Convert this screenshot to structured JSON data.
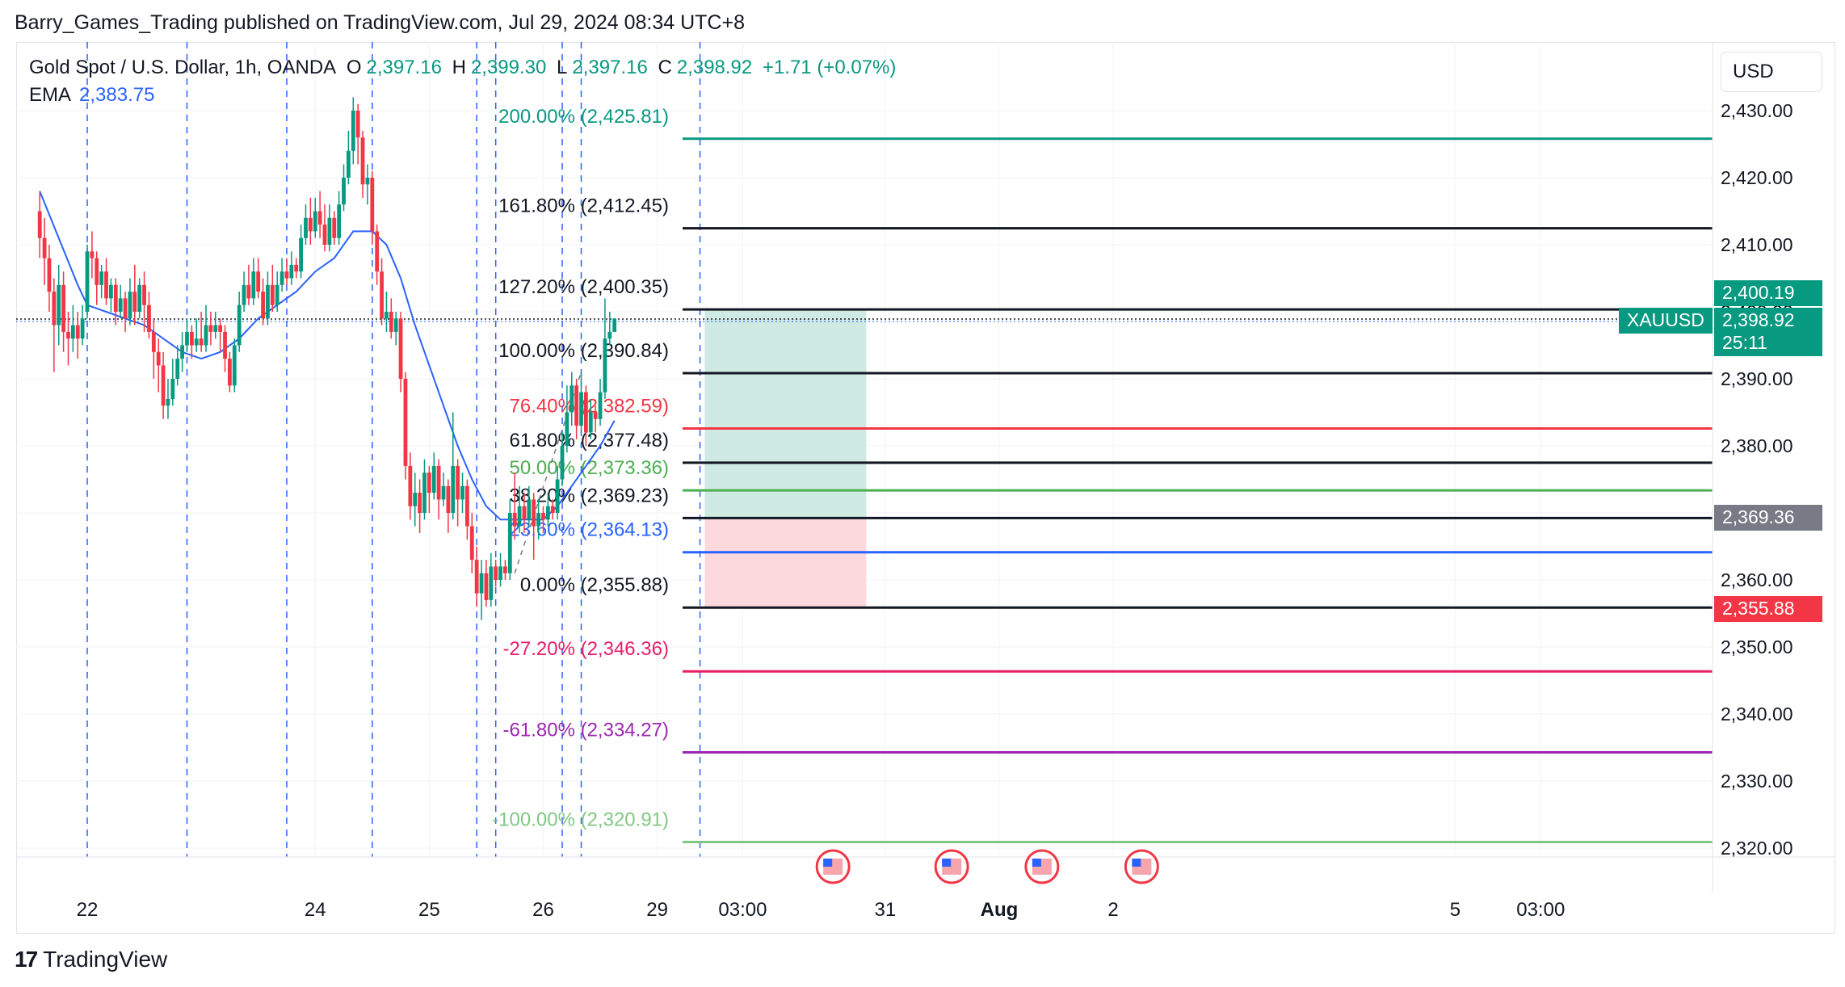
{
  "header": {
    "published_line": "Barry_Games_Trading published on TradingView.com, Jul 29, 2024 08:34 UTC+8"
  },
  "legend": {
    "symbol": "Gold Spot / U.S. Dollar, 1h, OANDA",
    "o_label": "O",
    "o_value": "2,397.16",
    "h_label": "H",
    "h_value": "2,399.30",
    "l_label": "L",
    "l_value": "2,397.16",
    "c_label": "C",
    "c_value": "2,398.92",
    "change": "+1.71 (+0.07%)",
    "ema_label": "EMA",
    "ema_value": "2,383.75"
  },
  "currency": "USD",
  "footer": {
    "brand": "TradingView",
    "brand_mark": "17"
  },
  "price_tags": {
    "symbol": "XAUUSD",
    "target": "2,400.19",
    "last": "2,398.92",
    "countdown": "25:11",
    "entry": "2,369.36",
    "stop": "2,355.88"
  },
  "colors": {
    "up": "#089981",
    "down": "#f23645",
    "ema": "#2962ff",
    "profit_zone": "#cfe9e3",
    "loss_zone": "#fbd9dc",
    "vline": "#2962ff"
  },
  "chart_data": {
    "type": "candlestick",
    "symbol": "Gold Spot / U.S. Dollar",
    "interval": "1h",
    "ylim": [
      2313,
      2436
    ],
    "y_ticks": [
      "2,430.00",
      "2,420.00",
      "2,410.00",
      "2,400.00",
      "2,390.00",
      "2,380.00",
      "2,370.00",
      "2,360.00",
      "2,350.00",
      "2,340.00",
      "2,330.00",
      "2,320.00"
    ],
    "y_tick_values": [
      2430,
      2420,
      2410,
      2400,
      2390,
      2380,
      2370,
      2360,
      2350,
      2340,
      2330,
      2320
    ],
    "x_tick_labels": [
      "22",
      "24",
      "25",
      "26",
      "29",
      "03:00",
      "31",
      "Aug",
      "2",
      "5",
      "03:00"
    ],
    "x_tick_hours": [
      0,
      48,
      72,
      96,
      120,
      138,
      168,
      192,
      216,
      288,
      306
    ],
    "fib_levels": [
      {
        "label": "200.00% (2,425.81)",
        "value": 2425.81,
        "color": "#089981"
      },
      {
        "label": "161.80% (2,412.45)",
        "value": 2412.45,
        "color": "#131722"
      },
      {
        "label": "127.20% (2,400.35)",
        "value": 2400.35,
        "color": "#131722"
      },
      {
        "label": "100.00% (2,390.84)",
        "value": 2390.84,
        "color": "#131722"
      },
      {
        "label": "76.40% (2,382.59)",
        "value": 2382.59,
        "color": "#f23645"
      },
      {
        "label": "61.80% (2,377.48)",
        "value": 2377.48,
        "color": "#131722"
      },
      {
        "label": "50.00% (2,373.36)",
        "value": 2373.36,
        "color": "#4caf50"
      },
      {
        "label": "38.20% (2,369.23)",
        "value": 2369.23,
        "color": "#131722"
      },
      {
        "label": "23.60% (2,364.13)",
        "value": 2364.13,
        "color": "#2962ff"
      },
      {
        "label": "0.00% (2,355.88)",
        "value": 2355.88,
        "color": "#131722"
      },
      {
        "label": "-27.20% (2,346.36)",
        "value": 2346.36,
        "color": "#e91e63"
      },
      {
        "label": "-61.80% (2,334.27)",
        "value": 2334.27,
        "color": "#9c27b0"
      },
      {
        "label": "-100.00% (2,320.91)",
        "value": 2320.91,
        "color": "#81c784"
      }
    ],
    "position": {
      "entry": 2369.36,
      "target": 2400.19,
      "stop": 2355.88,
      "from_hour": 130,
      "to_hour": 164
    },
    "event_hours": [
      157,
      182,
      201,
      222
    ],
    "vline_hours": [
      0,
      21,
      42,
      60,
      82,
      86,
      100,
      104,
      129
    ],
    "candles": [
      {
        "h": -10,
        "o": 2415,
        "c": 2411,
        "hi": 2418,
        "lo": 2408
      },
      {
        "h": -9,
        "o": 2411,
        "c": 2408,
        "hi": 2414,
        "lo": 2404
      },
      {
        "h": -8,
        "o": 2408,
        "c": 2403,
        "hi": 2410,
        "lo": 2400
      },
      {
        "h": -7,
        "o": 2403,
        "c": 2398,
        "hi": 2405,
        "lo": 2391
      },
      {
        "h": -6,
        "o": 2398,
        "c": 2404,
        "hi": 2407,
        "lo": 2395
      },
      {
        "h": -5,
        "o": 2404,
        "c": 2397,
        "hi": 2406,
        "lo": 2394
      },
      {
        "h": -4,
        "o": 2397,
        "c": 2396,
        "hi": 2400,
        "lo": 2392
      },
      {
        "h": -3,
        "o": 2396,
        "c": 2398,
        "hi": 2401,
        "lo": 2394
      },
      {
        "h": -2,
        "o": 2398,
        "c": 2396,
        "hi": 2400,
        "lo": 2393
      },
      {
        "h": -1,
        "o": 2396,
        "c": 2399,
        "hi": 2401,
        "lo": 2395
      },
      {
        "h": 0,
        "o": 2400,
        "c": 2409,
        "hi": 2410,
        "lo": 2399
      },
      {
        "h": 1,
        "o": 2409,
        "c": 2408,
        "hi": 2412,
        "lo": 2405
      },
      {
        "h": 2,
        "o": 2408,
        "c": 2404,
        "hi": 2409,
        "lo": 2401
      },
      {
        "h": 3,
        "o": 2404,
        "c": 2406,
        "hi": 2407,
        "lo": 2402
      },
      {
        "h": 4,
        "o": 2406,
        "c": 2402,
        "hi": 2408,
        "lo": 2401
      },
      {
        "h": 5,
        "o": 2402,
        "c": 2404,
        "hi": 2405,
        "lo": 2400
      },
      {
        "h": 6,
        "o": 2404,
        "c": 2400,
        "hi": 2405,
        "lo": 2398
      },
      {
        "h": 7,
        "o": 2400,
        "c": 2402,
        "hi": 2404,
        "lo": 2399
      },
      {
        "h": 8,
        "o": 2402,
        "c": 2399,
        "hi": 2403,
        "lo": 2397
      },
      {
        "h": 9,
        "o": 2399,
        "c": 2403,
        "hi": 2405,
        "lo": 2398
      },
      {
        "h": 10,
        "o": 2403,
        "c": 2400,
        "hi": 2407,
        "lo": 2398
      },
      {
        "h": 11,
        "o": 2400,
        "c": 2404,
        "hi": 2405,
        "lo": 2399
      },
      {
        "h": 12,
        "o": 2404,
        "c": 2401,
        "hi": 2406,
        "lo": 2397
      },
      {
        "h": 13,
        "o": 2401,
        "c": 2397,
        "hi": 2403,
        "lo": 2396
      },
      {
        "h": 14,
        "o": 2397,
        "c": 2394,
        "hi": 2399,
        "lo": 2390
      },
      {
        "h": 15,
        "o": 2394,
        "c": 2392,
        "hi": 2396,
        "lo": 2388
      },
      {
        "h": 16,
        "o": 2392,
        "c": 2386,
        "hi": 2394,
        "lo": 2384
      },
      {
        "h": 17,
        "o": 2386,
        "c": 2387,
        "hi": 2390,
        "lo": 2384
      },
      {
        "h": 18,
        "o": 2387,
        "c": 2390,
        "hi": 2393,
        "lo": 2386
      },
      {
        "h": 19,
        "o": 2390,
        "c": 2393,
        "hi": 2395,
        "lo": 2389
      },
      {
        "h": 20,
        "o": 2393,
        "c": 2395,
        "hi": 2397,
        "lo": 2391
      },
      {
        "h": 21,
        "o": 2395,
        "c": 2397,
        "hi": 2399,
        "lo": 2394
      },
      {
        "h": 22,
        "o": 2397,
        "c": 2395,
        "hi": 2398,
        "lo": 2393
      },
      {
        "h": 23,
        "o": 2395,
        "c": 2396,
        "hi": 2399,
        "lo": 2394
      },
      {
        "h": 24,
        "o": 2396,
        "c": 2395,
        "hi": 2400,
        "lo": 2394
      },
      {
        "h": 25,
        "o": 2395,
        "c": 2398,
        "hi": 2401,
        "lo": 2394
      },
      {
        "h": 26,
        "o": 2398,
        "c": 2397,
        "hi": 2400,
        "lo": 2395
      },
      {
        "h": 27,
        "o": 2397,
        "c": 2398,
        "hi": 2400,
        "lo": 2396
      },
      {
        "h": 28,
        "o": 2398,
        "c": 2397,
        "hi": 2399,
        "lo": 2394
      },
      {
        "h": 29,
        "o": 2397,
        "c": 2393,
        "hi": 2398,
        "lo": 2391
      },
      {
        "h": 30,
        "o": 2393,
        "c": 2389,
        "hi": 2394,
        "lo": 2388
      },
      {
        "h": 31,
        "o": 2389,
        "c": 2395,
        "hi": 2396,
        "lo": 2388
      },
      {
        "h": 32,
        "o": 2395,
        "c": 2401,
        "hi": 2403,
        "lo": 2394
      },
      {
        "h": 33,
        "o": 2401,
        "c": 2404,
        "hi": 2406,
        "lo": 2400
      },
      {
        "h": 34,
        "o": 2404,
        "c": 2402,
        "hi": 2407,
        "lo": 2401
      },
      {
        "h": 35,
        "o": 2402,
        "c": 2406,
        "hi": 2408,
        "lo": 2401
      },
      {
        "h": 36,
        "o": 2406,
        "c": 2403,
        "hi": 2408,
        "lo": 2402
      },
      {
        "h": 37,
        "o": 2403,
        "c": 2399,
        "hi": 2405,
        "lo": 2398
      },
      {
        "h": 38,
        "o": 2399,
        "c": 2404,
        "hi": 2406,
        "lo": 2398
      },
      {
        "h": 39,
        "o": 2404,
        "c": 2401,
        "hi": 2407,
        "lo": 2400
      },
      {
        "h": 40,
        "o": 2401,
        "c": 2404,
        "hi": 2406,
        "lo": 2400
      },
      {
        "h": 41,
        "o": 2404,
        "c": 2406,
        "hi": 2408,
        "lo": 2403
      },
      {
        "h": 42,
        "o": 2406,
        "c": 2405,
        "hi": 2408,
        "lo": 2404
      },
      {
        "h": 43,
        "o": 2405,
        "c": 2407,
        "hi": 2409,
        "lo": 2404
      },
      {
        "h": 44,
        "o": 2407,
        "c": 2406,
        "hi": 2408,
        "lo": 2405
      },
      {
        "h": 45,
        "o": 2406,
        "c": 2411,
        "hi": 2413,
        "lo": 2405
      },
      {
        "h": 46,
        "o": 2411,
        "c": 2414,
        "hi": 2416,
        "lo": 2410
      },
      {
        "h": 47,
        "o": 2414,
        "c": 2412,
        "hi": 2417,
        "lo": 2410
      },
      {
        "h": 48,
        "o": 2412,
        "c": 2415,
        "hi": 2417,
        "lo": 2411
      },
      {
        "h": 49,
        "o": 2415,
        "c": 2413,
        "hi": 2418,
        "lo": 2411
      },
      {
        "h": 50,
        "o": 2413,
        "c": 2410,
        "hi": 2416,
        "lo": 2409
      },
      {
        "h": 51,
        "o": 2410,
        "c": 2414,
        "hi": 2416,
        "lo": 2409
      },
      {
        "h": 52,
        "o": 2414,
        "c": 2411,
        "hi": 2415,
        "lo": 2410
      },
      {
        "h": 53,
        "o": 2411,
        "c": 2416,
        "hi": 2418,
        "lo": 2410
      },
      {
        "h": 54,
        "o": 2416,
        "c": 2420,
        "hi": 2422,
        "lo": 2415
      },
      {
        "h": 55,
        "o": 2420,
        "c": 2424,
        "hi": 2427,
        "lo": 2419
      },
      {
        "h": 56,
        "o": 2424,
        "c": 2430,
        "hi": 2432,
        "lo": 2422
      },
      {
        "h": 57,
        "o": 2430,
        "c": 2426,
        "hi": 2431,
        "lo": 2422
      },
      {
        "h": 58,
        "o": 2426,
        "c": 2419,
        "hi": 2427,
        "lo": 2417
      },
      {
        "h": 59,
        "o": 2419,
        "c": 2420,
        "hi": 2422,
        "lo": 2416
      },
      {
        "h": 60,
        "o": 2420,
        "c": 2412,
        "hi": 2421,
        "lo": 2410
      },
      {
        "h": 61,
        "o": 2412,
        "c": 2406,
        "hi": 2413,
        "lo": 2404
      },
      {
        "h": 62,
        "o": 2406,
        "c": 2399,
        "hi": 2408,
        "lo": 2398
      },
      {
        "h": 63,
        "o": 2399,
        "c": 2400,
        "hi": 2403,
        "lo": 2397
      },
      {
        "h": 64,
        "o": 2400,
        "c": 2397,
        "hi": 2402,
        "lo": 2396
      },
      {
        "h": 65,
        "o": 2397,
        "c": 2399,
        "hi": 2400,
        "lo": 2395
      },
      {
        "h": 66,
        "o": 2399,
        "c": 2390,
        "hi": 2400,
        "lo": 2388
      },
      {
        "h": 67,
        "o": 2390,
        "c": 2377,
        "hi": 2391,
        "lo": 2375
      },
      {
        "h": 68,
        "o": 2377,
        "c": 2371,
        "hi": 2379,
        "lo": 2369
      },
      {
        "h": 69,
        "o": 2371,
        "c": 2373,
        "hi": 2376,
        "lo": 2368
      },
      {
        "h": 70,
        "o": 2373,
        "c": 2370,
        "hi": 2375,
        "lo": 2367
      },
      {
        "h": 71,
        "o": 2370,
        "c": 2376,
        "hi": 2378,
        "lo": 2369
      },
      {
        "h": 72,
        "o": 2376,
        "c": 2373,
        "hi": 2377,
        "lo": 2370
      },
      {
        "h": 73,
        "o": 2373,
        "c": 2377,
        "hi": 2379,
        "lo": 2372
      },
      {
        "h": 74,
        "o": 2377,
        "c": 2372,
        "hi": 2378,
        "lo": 2369
      },
      {
        "h": 75,
        "o": 2372,
        "c": 2374,
        "hi": 2376,
        "lo": 2371
      },
      {
        "h": 76,
        "o": 2374,
        "c": 2370,
        "hi": 2375,
        "lo": 2367
      },
      {
        "h": 77,
        "o": 2370,
        "c": 2377,
        "hi": 2385,
        "lo": 2369
      },
      {
        "h": 78,
        "o": 2377,
        "c": 2372,
        "hi": 2378,
        "lo": 2368
      },
      {
        "h": 79,
        "o": 2372,
        "c": 2374,
        "hi": 2376,
        "lo": 2370
      },
      {
        "h": 80,
        "o": 2374,
        "c": 2368,
        "hi": 2375,
        "lo": 2366
      },
      {
        "h": 81,
        "o": 2368,
        "c": 2363,
        "hi": 2370,
        "lo": 2361
      },
      {
        "h": 82,
        "o": 2363,
        "c": 2358,
        "hi": 2365,
        "lo": 2356
      },
      {
        "h": 83,
        "o": 2358,
        "c": 2361,
        "hi": 2363,
        "lo": 2354
      },
      {
        "h": 84,
        "o": 2361,
        "c": 2357,
        "hi": 2363,
        "lo": 2356
      },
      {
        "h": 85,
        "o": 2357,
        "c": 2362,
        "hi": 2364,
        "lo": 2356
      },
      {
        "h": 86,
        "o": 2362,
        "c": 2360,
        "hi": 2363,
        "lo": 2359
      },
      {
        "h": 87,
        "o": 2360,
        "c": 2362,
        "hi": 2364,
        "lo": 2359
      },
      {
        "h": 88,
        "o": 2362,
        "c": 2361,
        "hi": 2363,
        "lo": 2360
      },
      {
        "h": 89,
        "o": 2361,
        "c": 2370,
        "hi": 2372,
        "lo": 2360
      },
      {
        "h": 90,
        "o": 2370,
        "c": 2368,
        "hi": 2376,
        "lo": 2366
      },
      {
        "h": 91,
        "o": 2368,
        "c": 2371,
        "hi": 2374,
        "lo": 2367
      },
      {
        "h": 92,
        "o": 2371,
        "c": 2369,
        "hi": 2373,
        "lo": 2367
      },
      {
        "h": 93,
        "o": 2369,
        "c": 2372,
        "hi": 2374,
        "lo": 2368
      },
      {
        "h": 94,
        "o": 2372,
        "c": 2368,
        "hi": 2373,
        "lo": 2363
      },
      {
        "h": 95,
        "o": 2368,
        "c": 2370,
        "hi": 2372,
        "lo": 2366
      },
      {
        "h": 96,
        "o": 2370,
        "c": 2369,
        "hi": 2371,
        "lo": 2367
      },
      {
        "h": 97,
        "o": 2369,
        "c": 2371,
        "hi": 2373,
        "lo": 2368
      },
      {
        "h": 98,
        "o": 2371,
        "c": 2370,
        "hi": 2372,
        "lo": 2369
      },
      {
        "h": 99,
        "o": 2370,
        "c": 2375,
        "hi": 2377,
        "lo": 2369
      },
      {
        "h": 100,
        "o": 2375,
        "c": 2380,
        "hi": 2382,
        "lo": 2374
      },
      {
        "h": 101,
        "o": 2380,
        "c": 2385,
        "hi": 2389,
        "lo": 2379
      },
      {
        "h": 102,
        "o": 2385,
        "c": 2389,
        "hi": 2391,
        "lo": 2383
      },
      {
        "h": 103,
        "o": 2389,
        "c": 2383,
        "hi": 2390,
        "lo": 2381
      },
      {
        "h": 104,
        "o": 2383,
        "c": 2388,
        "hi": 2391,
        "lo": 2382
      },
      {
        "h": 105,
        "o": 2388,
        "c": 2382,
        "hi": 2389,
        "lo": 2380
      },
      {
        "h": 106,
        "o": 2382,
        "c": 2385,
        "hi": 2387,
        "lo": 2381
      },
      {
        "h": 107,
        "o": 2385,
        "c": 2384,
        "hi": 2386,
        "lo": 2382
      },
      {
        "h": 108,
        "o": 2384,
        "c": 2388,
        "hi": 2390,
        "lo": 2383
      },
      {
        "h": 109,
        "o": 2388,
        "c": 2396,
        "hi": 2402,
        "lo": 2387
      },
      {
        "h": 110,
        "o": 2396,
        "c": 2397,
        "hi": 2400,
        "lo": 2395
      },
      {
        "h": 111,
        "o": 2397,
        "c": 2399,
        "hi": 2399,
        "lo": 2397
      }
    ],
    "ema": [
      [
        -10,
        2418
      ],
      [
        -6,
        2411
      ],
      [
        -2,
        2404
      ],
      [
        0,
        2401
      ],
      [
        4,
        2400
      ],
      [
        8,
        2399
      ],
      [
        12,
        2398
      ],
      [
        16,
        2396
      ],
      [
        20,
        2394
      ],
      [
        24,
        2393
      ],
      [
        28,
        2394
      ],
      [
        32,
        2396
      ],
      [
        36,
        2399
      ],
      [
        40,
        2401
      ],
      [
        44,
        2403
      ],
      [
        48,
        2406
      ],
      [
        52,
        2408
      ],
      [
        56,
        2412
      ],
      [
        60,
        2412
      ],
      [
        63,
        2410
      ],
      [
        66,
        2405
      ],
      [
        69,
        2398
      ],
      [
        72,
        2392
      ],
      [
        75,
        2386
      ],
      [
        78,
        2380
      ],
      [
        81,
        2375
      ],
      [
        84,
        2371
      ],
      [
        87,
        2369
      ],
      [
        90,
        2369
      ],
      [
        93,
        2369
      ],
      [
        96,
        2369
      ],
      [
        99,
        2371
      ],
      [
        102,
        2374
      ],
      [
        105,
        2377
      ],
      [
        108,
        2380
      ],
      [
        111,
        2383.75
      ]
    ],
    "trend_line": [
      [
        90,
        2361
      ],
      [
        104,
        2391
      ]
    ]
  }
}
